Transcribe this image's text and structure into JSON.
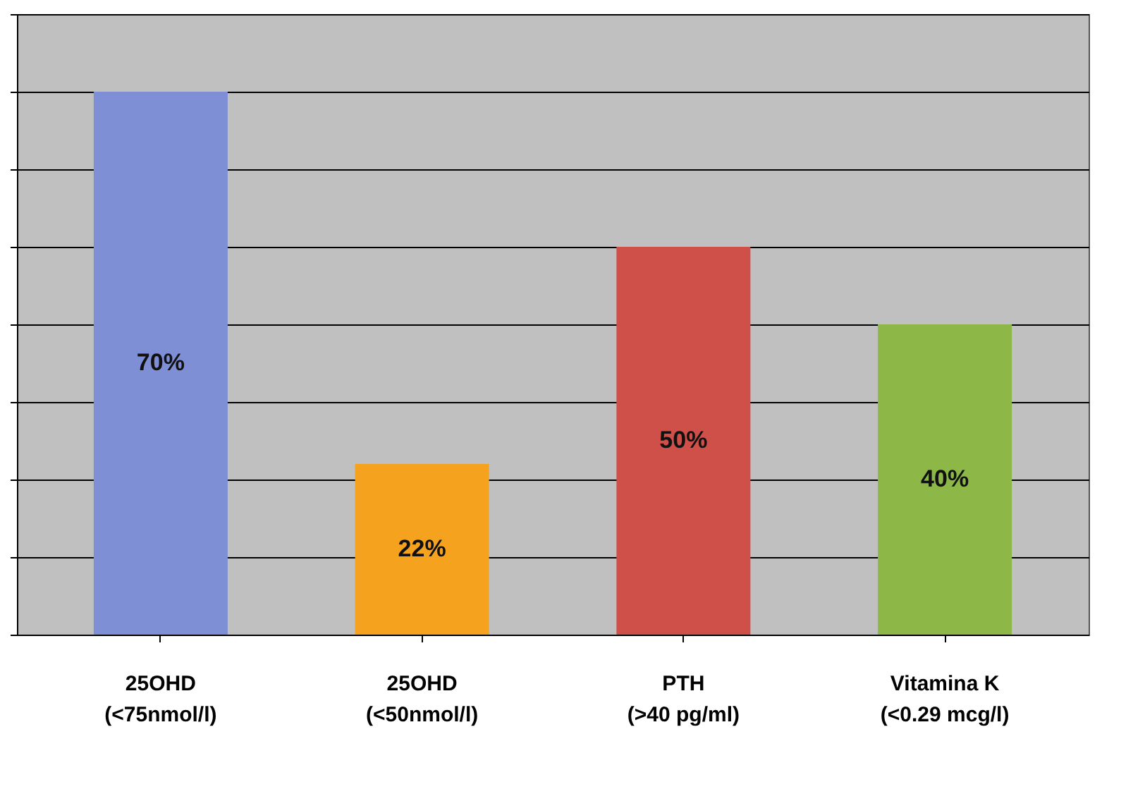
{
  "chart_data": {
    "type": "bar",
    "categories": [
      "25OHD\n(<75nmol/l)",
      "25OHD\n(<50nmol/l)",
      "PTH\n(>40 pg/ml)",
      "Vitamina K\n(<0.29 mcg/l)"
    ],
    "values": [
      70,
      22,
      50,
      40
    ],
    "colors": [
      "#7f8fd6",
      "#f5a21e",
      "#cf5048",
      "#8db848"
    ],
    "value_labels": [
      "70%",
      "22%",
      "50%",
      "40%"
    ],
    "ylim": [
      0,
      80
    ],
    "yticks": [
      {
        "value": 0,
        "label": null
      },
      {
        "value": 10,
        "label": null
      },
      {
        "value": 20,
        "label": null
      },
      {
        "value": 30,
        "label": null
      },
      {
        "value": 40,
        "label": null
      },
      {
        "value": 50,
        "label": null
      },
      {
        "value": 60,
        "label": null
      },
      {
        "value": 70,
        "label": null
      },
      {
        "value": 80,
        "label": null
      }
    ],
    "grid": "y"
  }
}
